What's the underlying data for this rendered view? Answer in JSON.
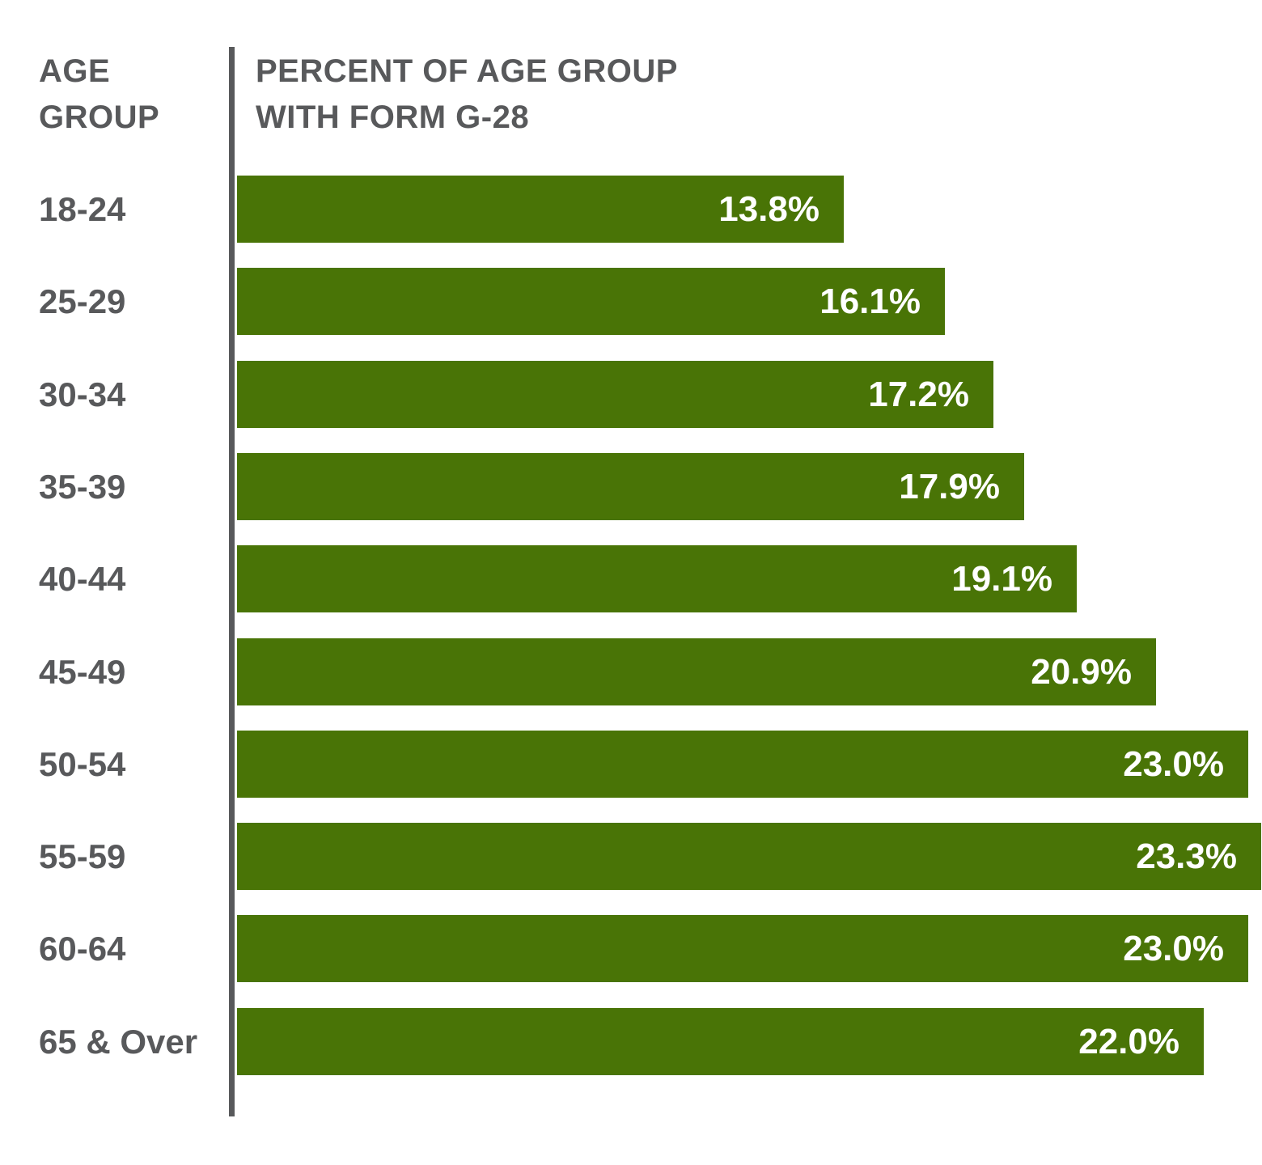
{
  "chart": {
    "header_left_lines": [
      "AGE",
      "GROUP"
    ],
    "header_right_lines": [
      "PERCENT OF AGE GROUP",
      "WITH FORM G-28"
    ]
  },
  "chart_data": {
    "type": "bar",
    "orientation": "horizontal",
    "title": "",
    "xlabel": "PERCENT OF AGE GROUP WITH FORM G-28",
    "ylabel": "AGE GROUP",
    "categories": [
      "18-24",
      "25-29",
      "30-34",
      "35-39",
      "40-44",
      "45-49",
      "50-54",
      "55-59",
      "60-64",
      "65 & Over"
    ],
    "values": [
      13.8,
      16.1,
      17.2,
      17.9,
      19.1,
      20.9,
      23.0,
      23.3,
      23.0,
      22.0
    ],
    "value_labels": [
      "13.8%",
      "16.1%",
      "17.2%",
      "17.9%",
      "19.1%",
      "20.9%",
      "23.0%",
      "23.3%",
      "23.0%",
      "22.0%"
    ],
    "xlim": [
      0,
      23.3
    ],
    "grid": false,
    "legend": "none",
    "bar_color": "#497406",
    "axis_color": "#58595B",
    "label_color": "#58595B",
    "value_label_color": "#ffffff"
  }
}
